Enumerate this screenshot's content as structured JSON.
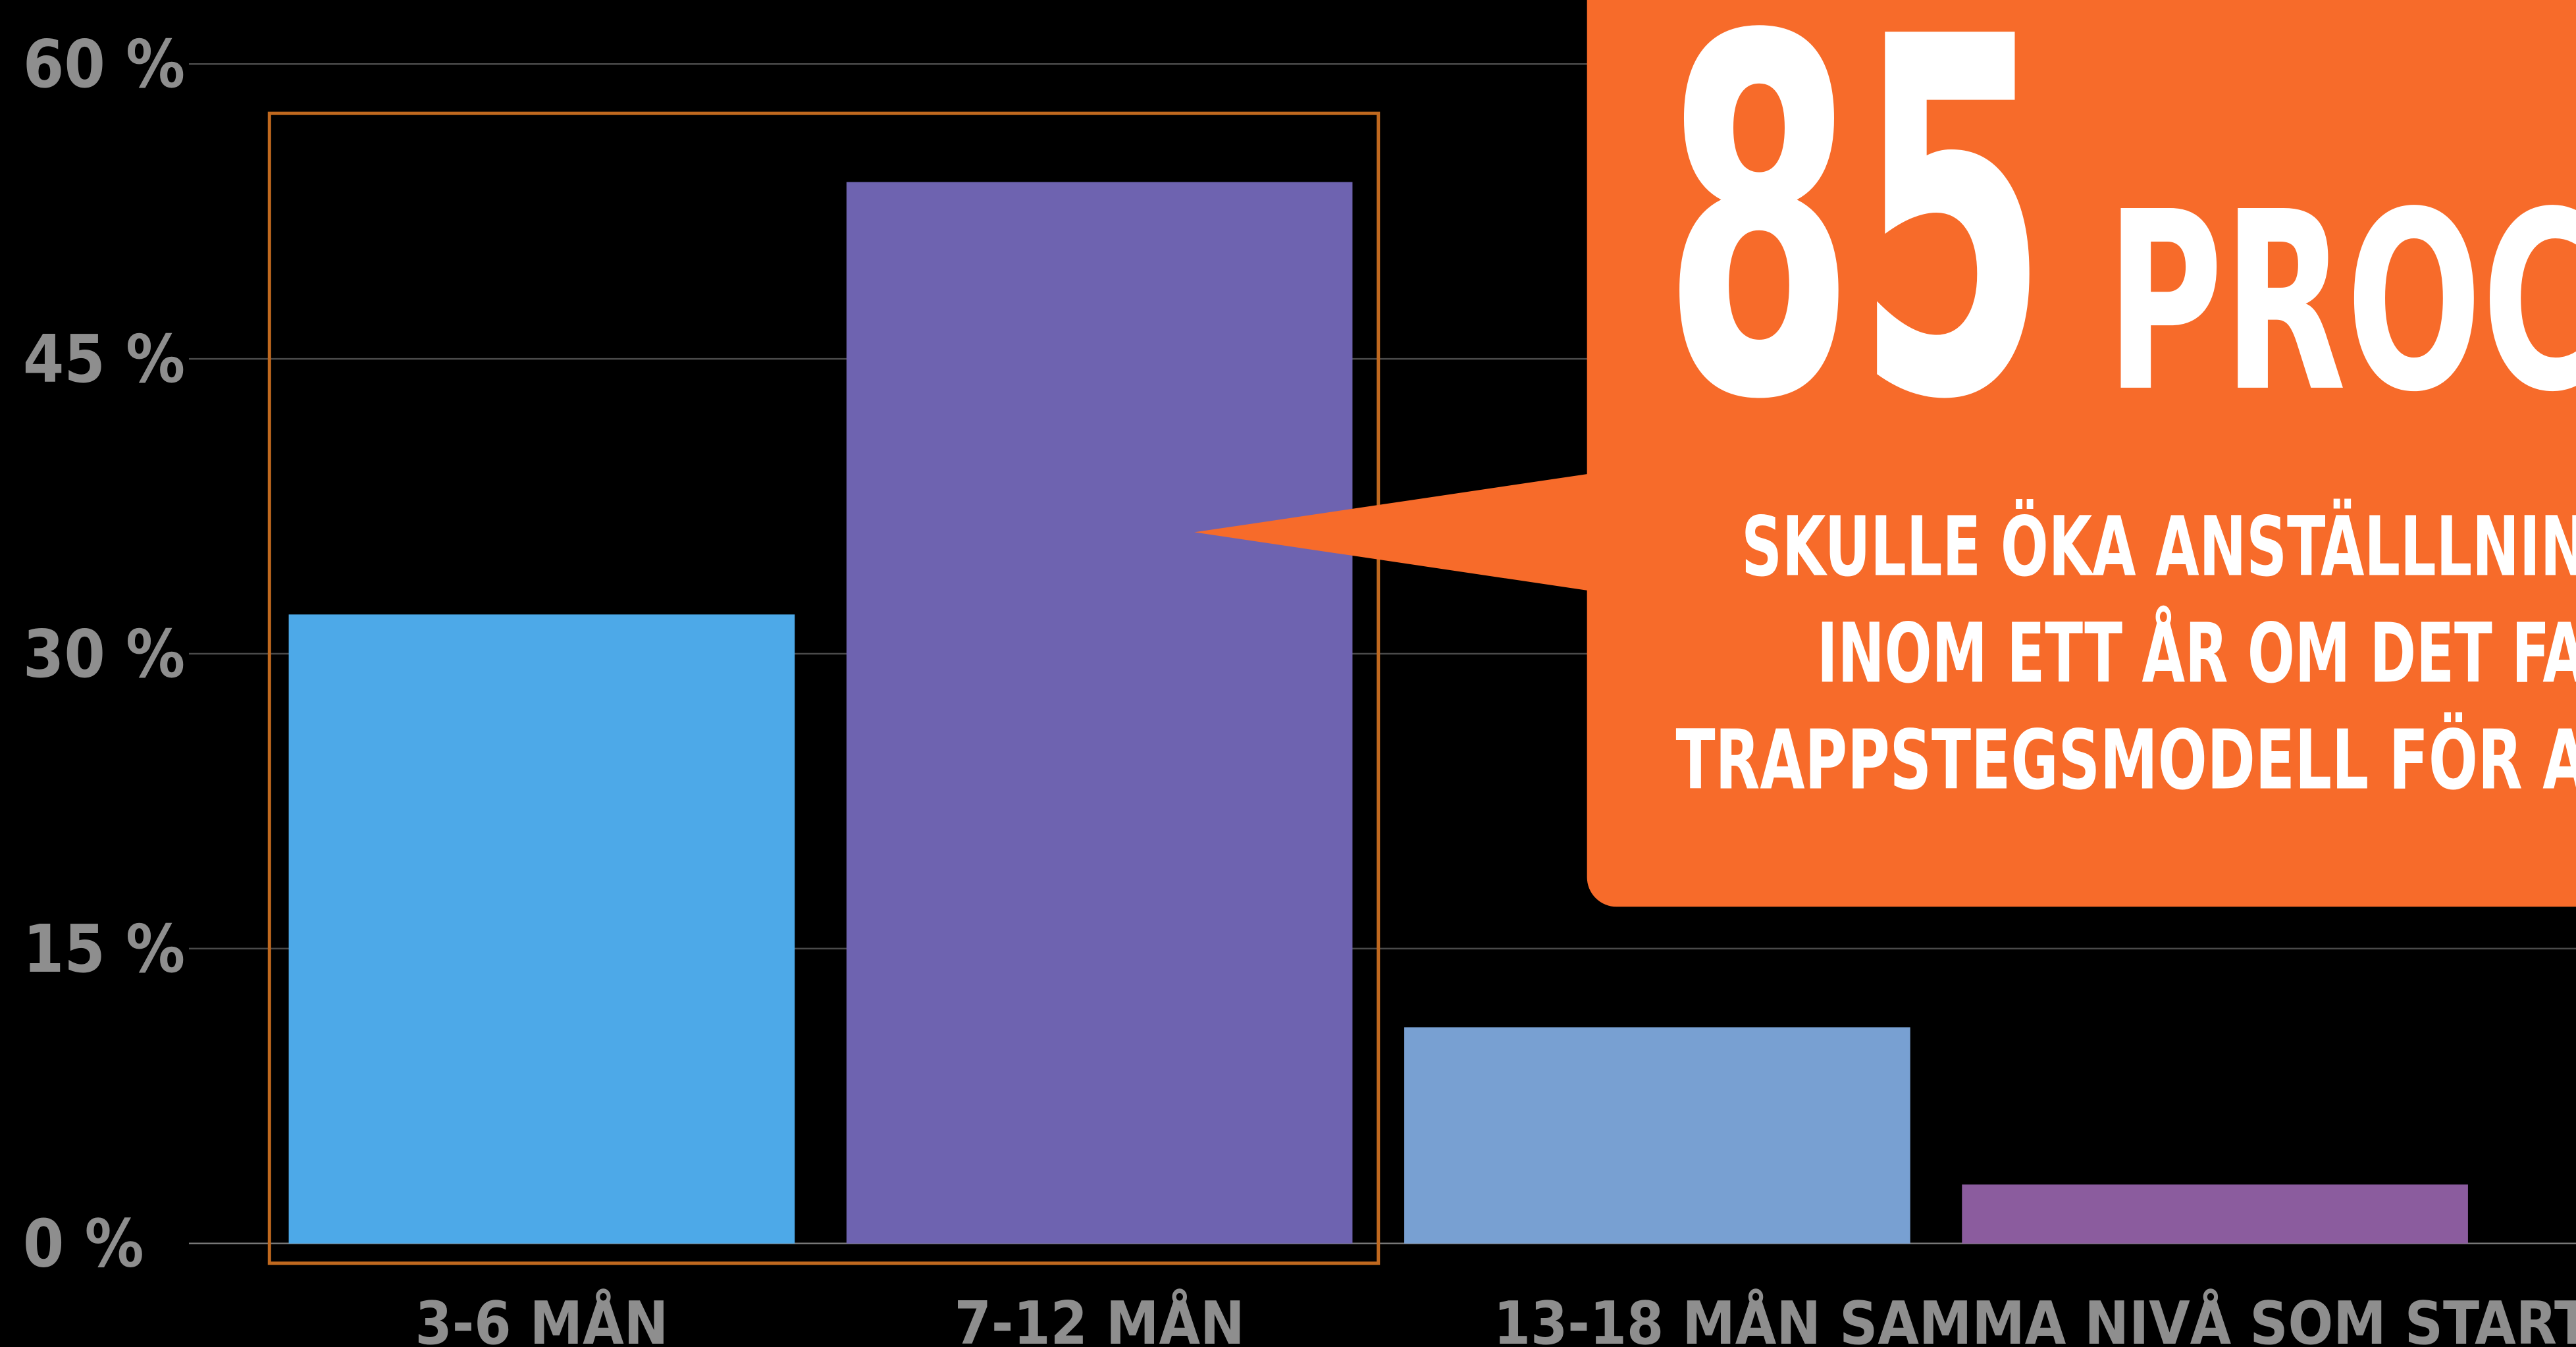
{
  "chart_data": {
    "type": "bar",
    "categories": [
      "3-6 MÅN",
      "7-12 MÅN",
      "13-18 MÅN",
      "SAMMA NIVÅ SOM START"
    ],
    "values": [
      32,
      54,
      11,
      3
    ],
    "colors": [
      "#4da9e8",
      "#6e63b0",
      "#78a0d2",
      "#8b5c9e"
    ],
    "ylim": [
      0,
      60
    ],
    "yticks": [
      {
        "value": 0,
        "label": "0 %"
      },
      {
        "value": 15,
        "label": "15 %"
      },
      {
        "value": 30,
        "label": "30 %"
      },
      {
        "value": 45,
        "label": "45 %"
      },
      {
        "value": 60,
        "label": "60 %"
      }
    ],
    "grid": true,
    "annotation": {
      "number": "85",
      "unit": "PROC",
      "lines": [
        "SKULLE ÖKA ANSTÄLLLNIN",
        "INOM ETT ÅR OM DET FA",
        "TRAPPSTEGSMODELL FÖR A"
      ]
    }
  }
}
